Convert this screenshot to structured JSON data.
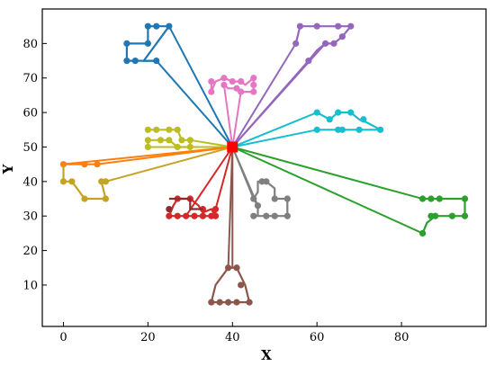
{
  "chart_data": {
    "type": "scatter",
    "title": "",
    "xlabel": "X",
    "ylabel": "Y",
    "xlim": [
      -5,
      100
    ],
    "ylim": [
      -2,
      90
    ],
    "xticks": [
      0,
      20,
      40,
      60,
      80
    ],
    "yticks": [
      10,
      20,
      30,
      40,
      50,
      60,
      70,
      80
    ],
    "grid": false,
    "legend": "none",
    "hub": {
      "x": 40,
      "y": 50,
      "color": "#ff0000"
    },
    "series": [
      {
        "color": "#1f77b4",
        "path": [
          [
            15,
            80
          ],
          [
            20,
            80
          ],
          [
            20,
            85
          ],
          [
            22,
            85
          ],
          [
            25,
            85
          ],
          [
            19,
            75
          ],
          [
            22,
            75
          ]
        ],
        "dots": [
          [
            15,
            80
          ],
          [
            20,
            80
          ],
          [
            20,
            85
          ],
          [
            22,
            85
          ],
          [
            25,
            85
          ],
          [
            15,
            75
          ],
          [
            17,
            75
          ],
          [
            22,
            75
          ]
        ],
        "edges": [
          [
            [
              15,
              80
            ],
            [
              15,
              75
            ],
            [
              17,
              75
            ],
            [
              22,
              75
            ]
          ]
        ],
        "spokes": [
          [
            25,
            85
          ],
          [
            22,
            75
          ]
        ]
      },
      {
        "color": "#9467bd",
        "path": [
          [
            55,
            80
          ],
          [
            56,
            85
          ],
          [
            60,
            85
          ],
          [
            65,
            85
          ],
          [
            68,
            85
          ],
          [
            66,
            82
          ],
          [
            64,
            80
          ],
          [
            62,
            80
          ],
          [
            60,
            78
          ],
          [
            58,
            75
          ]
        ],
        "dots": [
          [
            55,
            80
          ],
          [
            56,
            85
          ],
          [
            60,
            85
          ],
          [
            65,
            85
          ],
          [
            68,
            85
          ],
          [
            66,
            82
          ],
          [
            64,
            80
          ],
          [
            62,
            80
          ],
          [
            58,
            75
          ]
        ],
        "edges": [],
        "spokes": [
          [
            55,
            80
          ],
          [
            58,
            75
          ],
          [
            62,
            80
          ]
        ]
      },
      {
        "color": "#e377c2",
        "path": [
          [
            35,
            69
          ],
          [
            35,
            66
          ],
          [
            36,
            69
          ],
          [
            38,
            70
          ],
          [
            40,
            69
          ],
          [
            42,
            69
          ],
          [
            43,
            68
          ],
          [
            45,
            70
          ],
          [
            45,
            68
          ],
          [
            45,
            66
          ],
          [
            42,
            66
          ],
          [
            41,
            67
          ],
          [
            39,
            67
          ],
          [
            38,
            68
          ]
        ],
        "dots": [
          [
            35,
            69
          ],
          [
            35,
            66
          ],
          [
            38,
            70
          ],
          [
            40,
            69
          ],
          [
            42,
            69
          ],
          [
            45,
            70
          ],
          [
            45,
            68
          ],
          [
            45,
            66
          ],
          [
            42,
            66
          ],
          [
            41,
            67
          ],
          [
            38,
            68
          ]
        ],
        "edges": [],
        "spokes": [
          [
            38,
            68
          ],
          [
            42,
            66
          ]
        ]
      },
      {
        "color": "#17becf",
        "path": [
          [
            60,
            55
          ],
          [
            65,
            55
          ],
          [
            66,
            55
          ],
          [
            70,
            55
          ],
          [
            75,
            55
          ],
          [
            72,
            57
          ],
          [
            70,
            58
          ],
          [
            68,
            60
          ],
          [
            65,
            60
          ],
          [
            63,
            58
          ],
          [
            60,
            60
          ]
        ],
        "dots": [
          [
            60,
            55
          ],
          [
            65,
            55
          ],
          [
            66,
            55
          ],
          [
            70,
            55
          ],
          [
            75,
            55
          ],
          [
            71,
            58
          ],
          [
            68,
            60
          ],
          [
            65,
            60
          ],
          [
            63,
            58
          ],
          [
            60,
            60
          ]
        ],
        "edges": [],
        "spokes": [
          [
            60,
            60
          ],
          [
            60,
            55
          ]
        ]
      },
      {
        "color": "#bcbd22",
        "path": [
          [
            20,
            55
          ],
          [
            22,
            55
          ],
          [
            25,
            55
          ],
          [
            27,
            55
          ],
          [
            28,
            52
          ],
          [
            30,
            52
          ],
          [
            30,
            50
          ],
          [
            27,
            50
          ],
          [
            25,
            52
          ],
          [
            23,
            52
          ],
          [
            20,
            52
          ],
          [
            20,
            50
          ]
        ],
        "dots": [
          [
            20,
            55
          ],
          [
            22,
            55
          ],
          [
            25,
            55
          ],
          [
            27,
            55
          ],
          [
            28,
            52
          ],
          [
            30,
            52
          ],
          [
            30,
            50
          ],
          [
            27,
            50
          ],
          [
            25,
            52
          ],
          [
            23,
            52
          ],
          [
            20,
            52
          ],
          [
            20,
            50
          ]
        ],
        "edges": [],
        "spokes": [
          [
            30,
            52
          ],
          [
            30,
            50
          ],
          [
            20,
            50
          ]
        ]
      },
      {
        "color": "#ff7f0e",
        "path": [
          [
            0,
            45
          ],
          [
            5,
            45
          ],
          [
            8,
            45
          ]
        ],
        "dots": [
          [
            0,
            45
          ],
          [
            5,
            45
          ],
          [
            8,
            45
          ]
        ],
        "edges": [],
        "spokes": [
          [
            0,
            45
          ],
          [
            8,
            45
          ]
        ]
      },
      {
        "color": "#c5a322",
        "path": [
          [
            0,
            45
          ],
          [
            0,
            40
          ],
          [
            2,
            40
          ],
          [
            5,
            35
          ],
          [
            10,
            35
          ],
          [
            9,
            40
          ],
          [
            10,
            40
          ]
        ],
        "dots": [
          [
            0,
            40
          ],
          [
            2,
            40
          ],
          [
            5,
            35
          ],
          [
            10,
            35
          ],
          [
            9,
            40
          ],
          [
            10,
            40
          ]
        ],
        "edges": [],
        "spokes": [
          [
            10,
            40
          ]
        ]
      },
      {
        "color": "#d62728",
        "path": [
          [
            25,
            30
          ],
          [
            26,
            33
          ],
          [
            27,
            35
          ],
          [
            30,
            35
          ],
          [
            32,
            33
          ],
          [
            33,
            31
          ],
          [
            35,
            32
          ],
          [
            36,
            30
          ],
          [
            36,
            32
          ]
        ],
        "dots": [
          [
            25,
            30
          ],
          [
            27,
            30
          ],
          [
            29,
            30
          ],
          [
            31,
            30
          ],
          [
            33,
            30
          ],
          [
            35,
            30
          ],
          [
            36,
            30
          ],
          [
            27,
            35
          ],
          [
            30,
            35
          ],
          [
            36,
            32
          ],
          [
            33,
            32
          ]
        ],
        "edges": [
          [
            [
              25,
              30
            ],
            [
              36,
              30
            ]
          ]
        ],
        "spokes": [
          [
            29,
            30
          ],
          [
            36,
            32
          ]
        ]
      },
      {
        "color": "#8c2d2d",
        "path": [
          [
            25,
            35
          ],
          [
            30,
            35
          ],
          [
            30,
            32
          ],
          [
            33,
            32
          ]
        ],
        "dots": [
          [
            25,
            32
          ]
        ],
        "edges": [],
        "spokes": []
      },
      {
        "color": "#7f7f7f",
        "path": [
          [
            45,
            30
          ],
          [
            48,
            30
          ],
          [
            50,
            30
          ],
          [
            53,
            30
          ],
          [
            53,
            32
          ],
          [
            53,
            35
          ],
          [
            50,
            35
          ],
          [
            50,
            38
          ],
          [
            48,
            40
          ],
          [
            46,
            40
          ],
          [
            46,
            37
          ],
          [
            45,
            35
          ],
          [
            46,
            33
          ],
          [
            46,
            30
          ]
        ],
        "dots": [
          [
            45,
            30
          ],
          [
            48,
            30
          ],
          [
            50,
            30
          ],
          [
            53,
            30
          ],
          [
            53,
            35
          ],
          [
            50,
            35
          ],
          [
            48,
            40
          ],
          [
            47,
            40
          ],
          [
            45,
            35
          ],
          [
            46,
            33
          ]
        ],
        "edges": [],
        "spokes": [
          [
            46,
            33
          ],
          [
            45,
            35
          ]
        ]
      },
      {
        "color": "#8c564b",
        "path": [
          [
            35,
            5
          ],
          [
            37,
            5
          ],
          [
            39,
            5
          ],
          [
            41,
            5
          ],
          [
            44,
            5
          ],
          [
            43,
            10
          ],
          [
            41,
            15
          ],
          [
            39,
            15
          ],
          [
            36,
            10
          ],
          [
            35,
            5
          ]
        ],
        "dots": [
          [
            35,
            5
          ],
          [
            37,
            5
          ],
          [
            39,
            5
          ],
          [
            41,
            5
          ],
          [
            44,
            5
          ],
          [
            42,
            10
          ],
          [
            41,
            15
          ],
          [
            39,
            15
          ]
        ],
        "edges": [],
        "spokes": [
          [
            39,
            15
          ],
          [
            40,
            15
          ]
        ]
      },
      {
        "color": "#2ca02c",
        "path": [
          [
            85,
            35
          ],
          [
            87,
            35
          ],
          [
            89,
            35
          ],
          [
            90,
            35
          ],
          [
            95,
            35
          ],
          [
            95,
            30
          ],
          [
            90,
            30
          ],
          [
            88,
            30
          ],
          [
            86,
            28
          ],
          [
            85,
            25
          ]
        ],
        "dots": [
          [
            85,
            35
          ],
          [
            87,
            35
          ],
          [
            89,
            35
          ],
          [
            95,
            35
          ],
          [
            95,
            30
          ],
          [
            92,
            30
          ],
          [
            88,
            30
          ],
          [
            87,
            30
          ],
          [
            85,
            25
          ]
        ],
        "edges": [],
        "spokes": [
          [
            85,
            35
          ],
          [
            85,
            25
          ]
        ]
      }
    ]
  }
}
